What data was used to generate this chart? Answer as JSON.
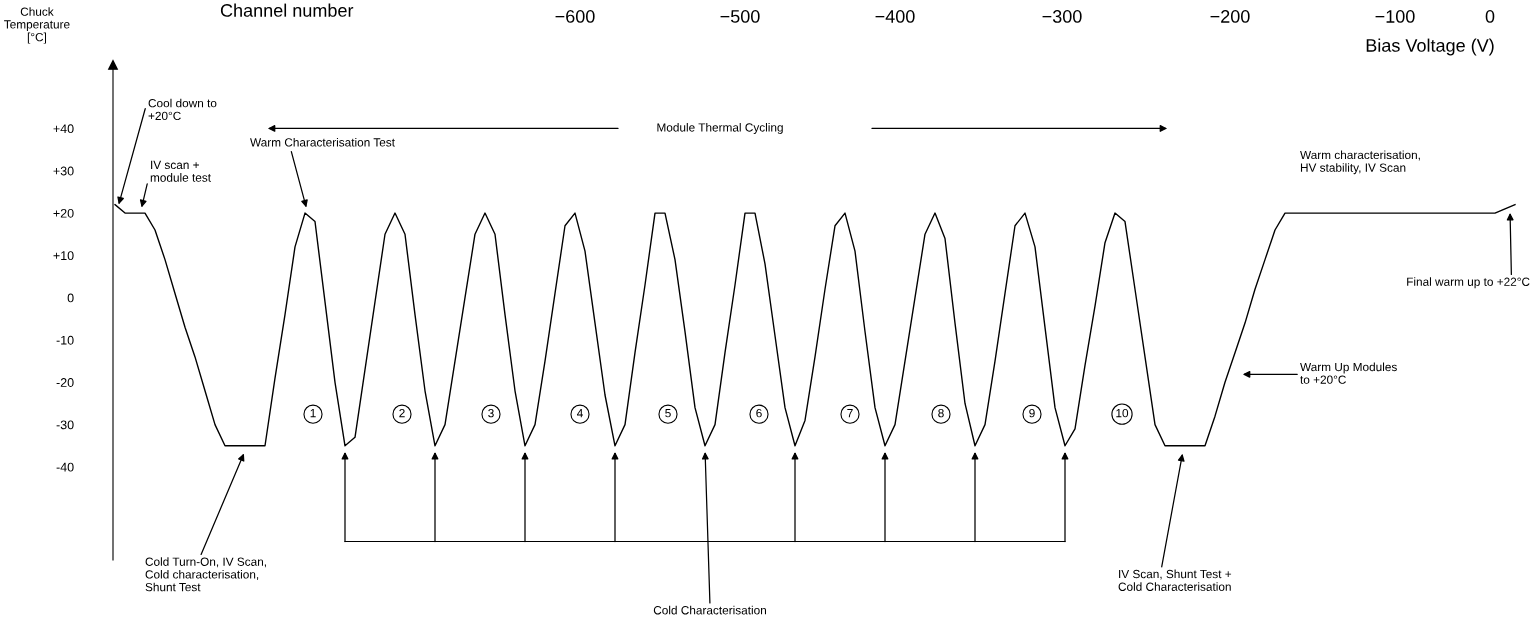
{
  "chart_data": {
    "type": "line",
    "ylabel": "Chuck\nTemperature\n[°C]",
    "categories": [
      null,
      null,
      null,
      null,
      null,
      null,
      null,
      null,
      null,
      null,
      null,
      null,
      null,
      null,
      null,
      null,
      null,
      null,
      null,
      null,
      null,
      null,
      null,
      null,
      null,
      null,
      null,
      null,
      null,
      null,
      null,
      null,
      null,
      null,
      null,
      null,
      null,
      null,
      null,
      null,
      null,
      null,
      null,
      null,
      null,
      null,
      null,
      null,
      null,
      null,
      null,
      null,
      null,
      null,
      null,
      null,
      null,
      null,
      null,
      null,
      null,
      null,
      null,
      null,
      null,
      null,
      null,
      null,
      null,
      null,
      null,
      null,
      null,
      null,
      null,
      null,
      null,
      null,
      null,
      null,
      null,
      null,
      null,
      null,
      null,
      null,
      null,
      null,
      null,
      null,
      null,
      null,
      null,
      null,
      null,
      null,
      null,
      null,
      null,
      null,
      null,
      null,
      null,
      null,
      null,
      null,
      null,
      null,
      null,
      null,
      null,
      null,
      null,
      null,
      null,
      null,
      null,
      null,
      null,
      null,
      null,
      null,
      null,
      null,
      null,
      null,
      null,
      null,
      null,
      null,
      null,
      null,
      null,
      null,
      null,
      null,
      null,
      null,
      null,
      null,
      null
    ],
    "ylim": [
      -62,
      55
    ],
    "yticks": [
      {
        "value": 40,
        "label": "+40"
      },
      {
        "value": 30,
        "label": "+30"
      },
      {
        "value": 20,
        "label": "+20"
      },
      {
        "value": 10,
        "label": "+10"
      },
      0,
      {
        "value": -10,
        "label": "-10"
      },
      {
        "value": -20,
        "label": "-20"
      },
      {
        "value": -30,
        "label": "-30"
      },
      {
        "value": -40,
        "label": "-40"
      }
    ],
    "tick_labels": "y",
    "marker": "none",
    "line_style": "solid",
    "series": [
      {
        "color": "#000000",
        "values": [
          22,
          20,
          20,
          20,
          16,
          9,
          1,
          -7,
          -14,
          -22,
          -30,
          -35,
          -35,
          -35,
          -35,
          -35,
          -19,
          -4,
          12,
          20,
          18,
          -1,
          -20,
          -35,
          -33,
          -17,
          -1,
          15,
          20,
          15,
          -4,
          -22,
          -35,
          -30,
          -15,
          0,
          15,
          20,
          15,
          -4,
          -22,
          -35,
          -30,
          -15,
          1,
          17,
          20,
          11,
          -6,
          -23,
          -35,
          -30,
          -13,
          3,
          20,
          20,
          9,
          -8,
          -26,
          -35,
          -30,
          -13,
          3,
          20,
          20,
          8,
          -9,
          -26,
          -35,
          -29,
          -14,
          2,
          17,
          20,
          11,
          -8,
          -26,
          -35,
          -30,
          -15,
          0,
          15,
          20,
          14,
          -6,
          -25,
          -35,
          -30,
          -15,
          1,
          17,
          20,
          12,
          -7,
          -26,
          -35,
          -31,
          -16,
          -2,
          13,
          20,
          18,
          2,
          -14,
          -30,
          -35,
          -35,
          -35,
          -35,
          -35,
          -28,
          -20,
          -13,
          -6,
          2,
          9,
          16,
          20,
          20,
          20,
          20,
          20,
          20,
          20,
          20,
          20,
          20,
          20,
          20,
          20,
          20,
          20,
          20,
          20,
          20,
          20,
          20,
          20,
          20,
          21,
          22
        ]
      }
    ],
    "annotations": [
      "Cool down to\n+20°C",
      "IV scan +\nmodule test",
      "Warm Characterisation Test",
      "Module Thermal Cycling",
      "Warm characterisation,\nHV stability, IV Scan",
      "Final warm up to +22°C",
      "Warm Up Modules\nto +20°C",
      "Cold Turn-On, IV Scan,\nCold characterisation,\nShunt Test",
      "IV Scan, Shunt Test +\nCold Characterisation",
      "Cold Characterisation",
      "1",
      "2",
      "3",
      "4",
      "5",
      "6",
      "7",
      "8",
      "9",
      "10",
      "Channel number",
      "−600",
      "−500",
      "−400",
      "−300",
      "−200",
      "−100",
      "0",
      "Bias Voltage (V)"
    ]
  }
}
